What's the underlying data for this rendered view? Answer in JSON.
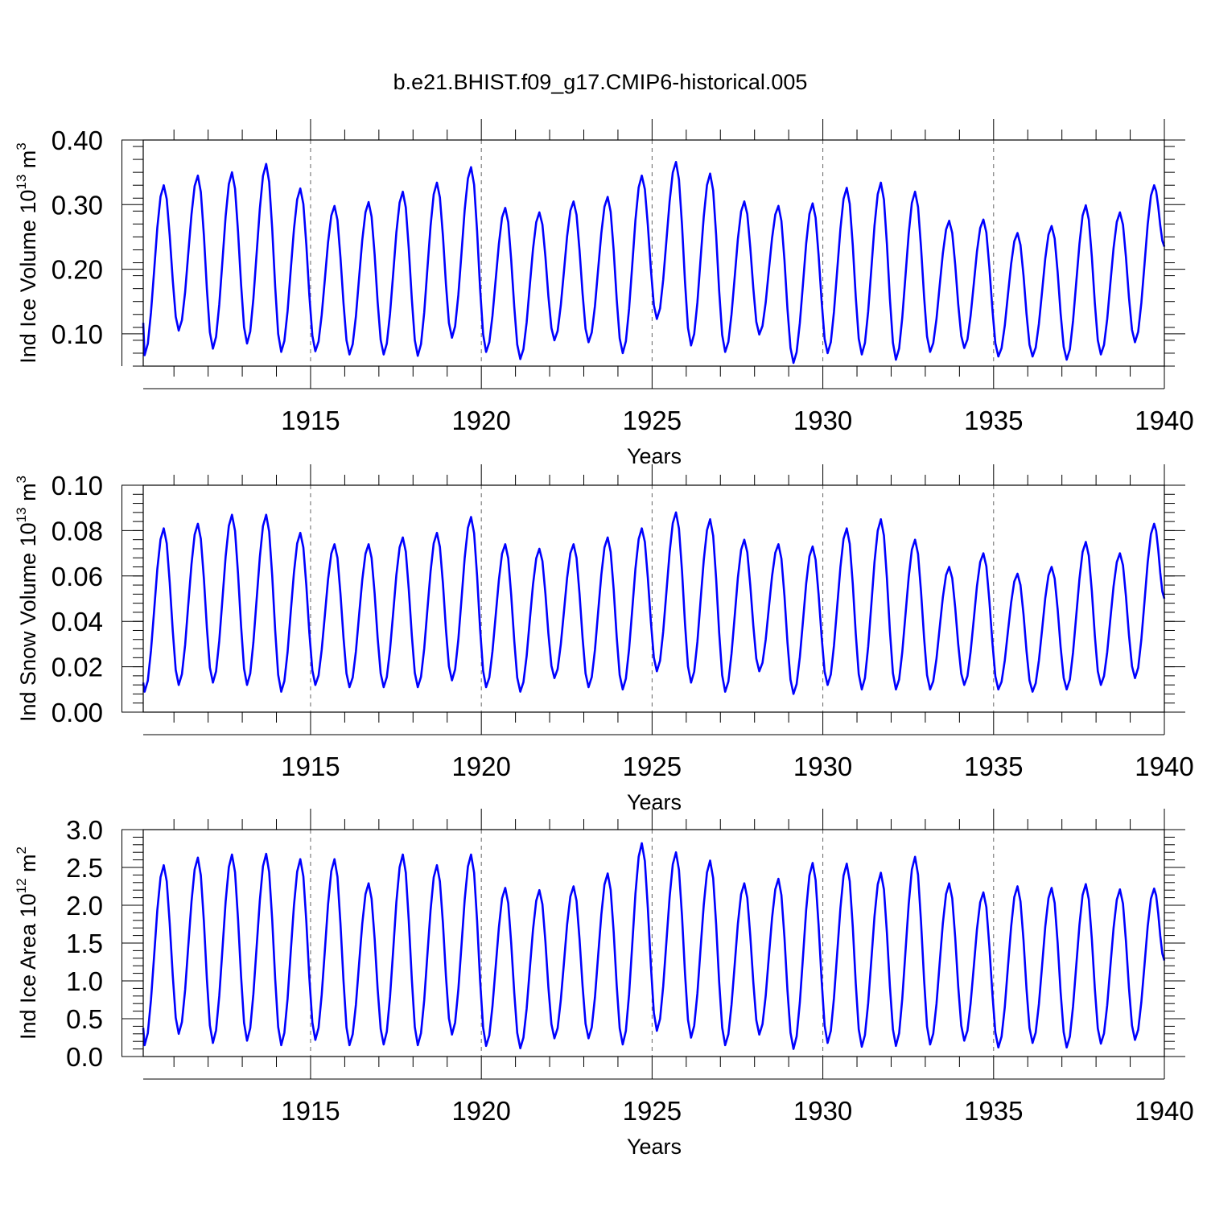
{
  "title": "b.e21.BHIST.f09_g17.CMIP6-historical.005",
  "chart_data": [
    {
      "type": "line",
      "ylabel": "Ind Ice Volume 10",
      "ylabel_exp": "13",
      "ylabel_unit": "m",
      "ylabel_unit_exp": "3",
      "xlabel": "Years",
      "xlim": [
        1910.1,
        1940.0
      ],
      "ylim": [
        0.05,
        0.4
      ],
      "yticks": [
        0.1,
        0.2,
        0.3,
        0.4
      ],
      "ytick_labels": [
        "0.10",
        "0.20",
        "0.30",
        "0.40"
      ],
      "xticks": [
        1915,
        1920,
        1925,
        1930,
        1935,
        1940
      ],
      "xtick_labels": [
        "1915",
        "1920",
        "1925",
        "1930",
        "1935",
        "1940"
      ],
      "grid": "dashed vertical lines at 5-year ticks",
      "series": [
        {
          "color": "#0000ff",
          "peaks": [
            0.33,
            0.345,
            0.35,
            0.363,
            0.325,
            0.298,
            0.304,
            0.32,
            0.334,
            0.358,
            0.295,
            0.288,
            0.305,
            0.312,
            0.345,
            0.366,
            0.348,
            0.305,
            0.298,
            0.302,
            0.326,
            0.334,
            0.32,
            0.275,
            0.277,
            0.256,
            0.267,
            0.299,
            0.288,
            0.33
          ],
          "troughs": [
            0.067,
            0.105,
            0.077,
            0.085,
            0.072,
            0.073,
            0.068,
            0.068,
            0.066,
            0.094,
            0.072,
            0.061,
            0.09,
            0.087,
            0.07,
            0.123,
            0.082,
            0.072,
            0.099,
            0.055,
            0.07,
            0.068,
            0.06,
            0.072,
            0.078,
            0.065,
            0.065,
            0.06,
            0.068,
            0.087
          ],
          "start": 0.117,
          "end": 0.235
        }
      ]
    },
    {
      "type": "line",
      "ylabel": "Ind Snow Volume 10",
      "ylabel_exp": "13",
      "ylabel_unit": "m",
      "ylabel_unit_exp": "3",
      "xlabel": "Years",
      "xlim": [
        1910.1,
        1940.0
      ],
      "ylim": [
        0.0,
        0.1
      ],
      "yticks": [
        0.0,
        0.02,
        0.04,
        0.06,
        0.08,
        0.1
      ],
      "ytick_labels": [
        "0.00",
        "0.02",
        "0.04",
        "0.06",
        "0.08",
        "0.10"
      ],
      "xticks": [
        1915,
        1920,
        1925,
        1930,
        1935,
        1940
      ],
      "xtick_labels": [
        "1915",
        "1920",
        "1925",
        "1930",
        "1935",
        "1940"
      ],
      "grid": "dashed vertical lines at 5-year ticks",
      "series": [
        {
          "color": "#0000ff",
          "peaks": [
            0.081,
            0.083,
            0.087,
            0.087,
            0.079,
            0.074,
            0.074,
            0.077,
            0.079,
            0.086,
            0.074,
            0.072,
            0.074,
            0.077,
            0.081,
            0.088,
            0.085,
            0.076,
            0.074,
            0.073,
            0.081,
            0.085,
            0.076,
            0.064,
            0.07,
            0.061,
            0.064,
            0.075,
            0.07,
            0.083
          ],
          "troughs": [
            0.009,
            0.012,
            0.013,
            0.012,
            0.009,
            0.012,
            0.011,
            0.011,
            0.011,
            0.014,
            0.011,
            0.009,
            0.015,
            0.011,
            0.01,
            0.018,
            0.013,
            0.009,
            0.018,
            0.008,
            0.012,
            0.01,
            0.01,
            0.01,
            0.012,
            0.01,
            0.009,
            0.01,
            0.012,
            0.015
          ],
          "start": 0.013,
          "end": 0.05
        }
      ]
    },
    {
      "type": "line",
      "ylabel": "Ind Ice Area 10",
      "ylabel_exp": "12",
      "ylabel_unit": "m",
      "ylabel_unit_exp": "2",
      "xlabel": "Years",
      "xlim": [
        1910.1,
        1940.0
      ],
      "ylim": [
        0.0,
        3.0
      ],
      "yticks": [
        0.0,
        0.5,
        1.0,
        1.5,
        2.0,
        2.5,
        3.0
      ],
      "ytick_labels": [
        "0.0",
        "0.5",
        "1.0",
        "1.5",
        "2.0",
        "2.5",
        "3.0"
      ],
      "xticks": [
        1915,
        1920,
        1925,
        1930,
        1935,
        1940
      ],
      "xtick_labels": [
        "1915",
        "1920",
        "1925",
        "1930",
        "1935",
        "1940"
      ],
      "grid": "dashed vertical lines at 5-year ticks",
      "series": [
        {
          "color": "#0000ff",
          "peaks": [
            2.53,
            2.63,
            2.67,
            2.68,
            2.61,
            2.61,
            2.29,
            2.67,
            2.53,
            2.67,
            2.23,
            2.2,
            2.25,
            2.42,
            2.82,
            2.7,
            2.59,
            2.29,
            2.35,
            2.56,
            2.55,
            2.43,
            2.64,
            2.29,
            2.17,
            2.25,
            2.23,
            2.28,
            2.21,
            2.22
          ],
          "troughs": [
            0.15,
            0.3,
            0.18,
            0.21,
            0.15,
            0.22,
            0.15,
            0.16,
            0.15,
            0.29,
            0.14,
            0.11,
            0.24,
            0.24,
            0.16,
            0.34,
            0.25,
            0.15,
            0.29,
            0.1,
            0.18,
            0.13,
            0.14,
            0.16,
            0.21,
            0.12,
            0.18,
            0.12,
            0.17,
            0.22
          ],
          "start": 0.38,
          "end": 1.27
        }
      ]
    }
  ]
}
